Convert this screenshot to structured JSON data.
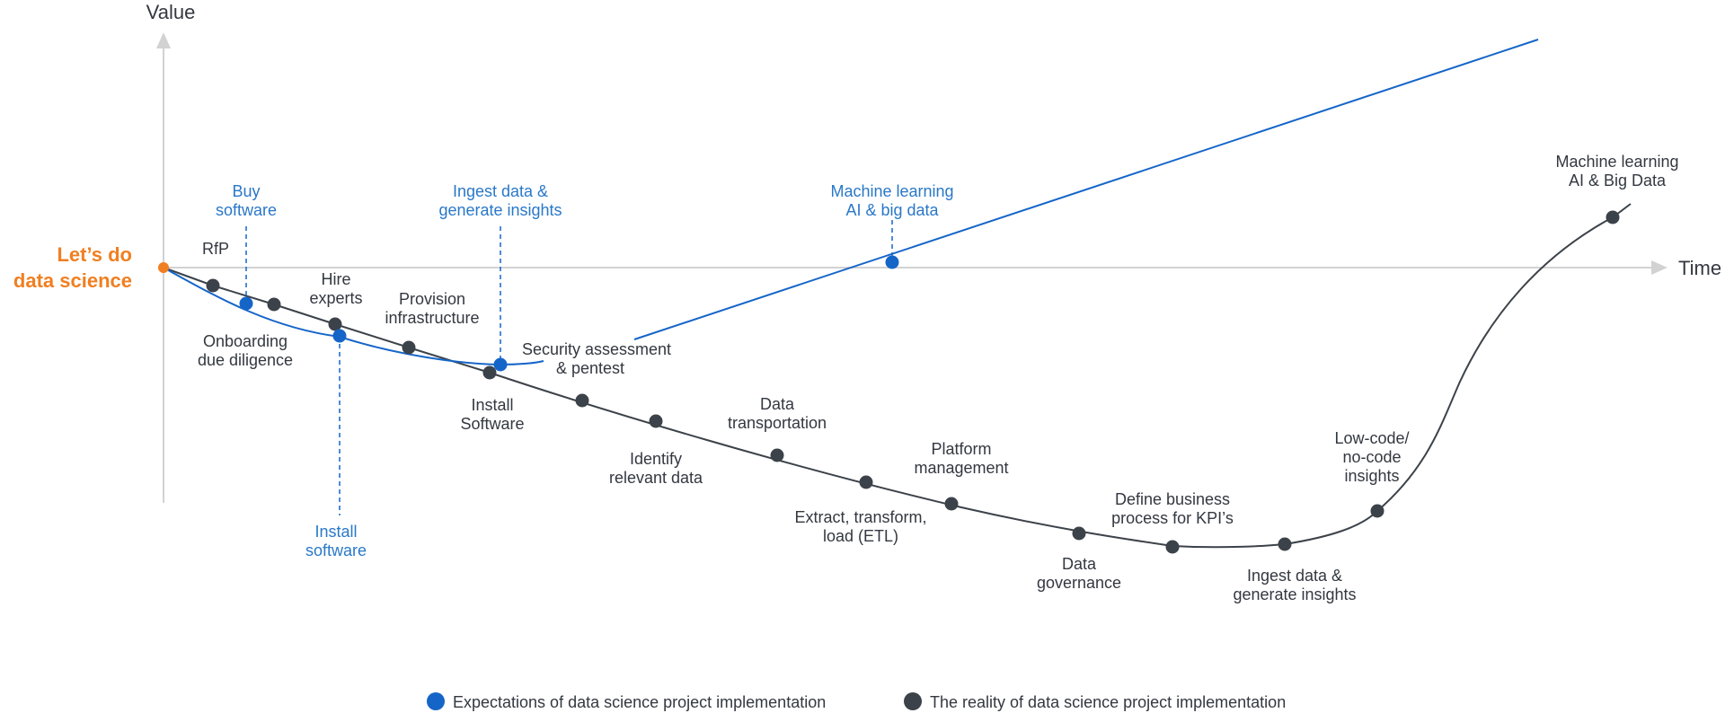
{
  "axes": {
    "y_label": "Value",
    "x_label": "Time"
  },
  "start": {
    "line1": "Let’s do",
    "line2": "data science"
  },
  "expectation_milestones": [
    {
      "line1": "Buy",
      "line2": "software"
    },
    {
      "line1": "Install",
      "line2": "software"
    },
    {
      "line1": "Ingest data &",
      "line2": "generate insights"
    },
    {
      "line1": "Machine learning",
      "line2": "AI & big data"
    }
  ],
  "reality_milestones": [
    {
      "line1": "RfP",
      "line2": ""
    },
    {
      "line1": "Onboarding",
      "line2": "due diligence"
    },
    {
      "line1": "Hire",
      "line2": "experts"
    },
    {
      "line1": "Provision",
      "line2": "infrastructure"
    },
    {
      "line1": "Install",
      "line2": "Software"
    },
    {
      "line1": "Security assessment",
      "line2": "& pentest"
    },
    {
      "line1": "Identify",
      "line2": "relevant data"
    },
    {
      "line1": "Data",
      "line2": "transportation"
    },
    {
      "line1": "Extract, transform,",
      "line2": "load (ETL)"
    },
    {
      "line1": "Platform",
      "line2": "management"
    },
    {
      "line1": "Data",
      "line2": "governance"
    },
    {
      "line1": "Define business",
      "line2": "process for KPI’s"
    },
    {
      "line1": "Ingest data &",
      "line2": "generate insights"
    },
    {
      "line1": "Low-code/",
      "line2": "no-code",
      "line3": "insights"
    },
    {
      "line1": "Machine learning",
      "line2": "AI & Big Data"
    }
  ],
  "legend": {
    "expectation": "Expectations of data science project implementation",
    "reality": "The reality of data science project implementation"
  },
  "colors": {
    "expectation": "#1565c8",
    "expectation_text": "#2a78c8",
    "reality": "#3c4249",
    "start": "#f07f21",
    "axis": "#d2d2d2"
  }
}
